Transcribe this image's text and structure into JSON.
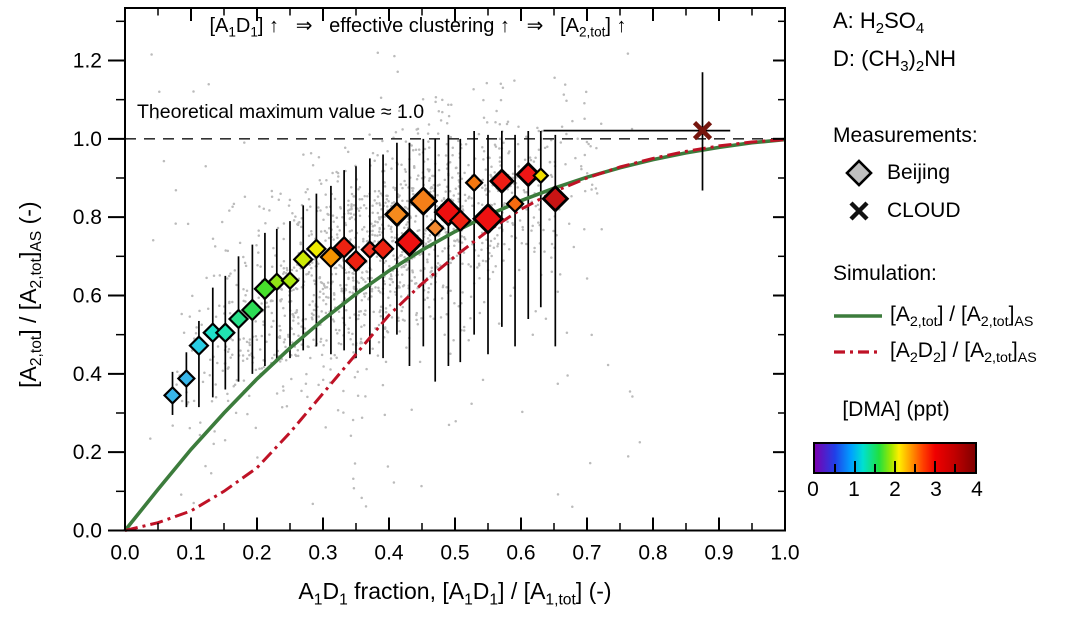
{
  "figure": {
    "annotation_segments": [
      {
        "t": "[A"
      },
      {
        "t": "1",
        "s": 1
      },
      {
        "t": "D"
      },
      {
        "t": "1",
        "s": 1
      },
      {
        "t": "] ↑   ⇒   effective clustering ↑   ⇒   [A"
      },
      {
        "t": "2,tot",
        "s": 1
      },
      {
        "t": "] ↑"
      }
    ],
    "theoretical_line_label": "Theoretical maximum value ≈ 1.0"
  },
  "legend": {
    "species_a_segments": [
      {
        "t": "A: H"
      },
      {
        "t": "2",
        "s": 1
      },
      {
        "t": "SO"
      },
      {
        "t": "4",
        "s": 1
      }
    ],
    "species_d_segments": [
      {
        "t": "D: (CH"
      },
      {
        "t": "3",
        "s": 1
      },
      {
        "t": ")"
      },
      {
        "t": "2",
        "s": 1
      },
      {
        "t": "NH"
      }
    ],
    "measurements_title": "Measurements:",
    "beijing_label": "Beijing",
    "cloud_label": "CLOUD",
    "beijing_symbol_color": "#bfbfbf",
    "simulation_title": "Simulation:",
    "sim_green_segments": [
      {
        "t": "[A"
      },
      {
        "t": "2,tot",
        "s": 1
      },
      {
        "t": "] / [A"
      },
      {
        "t": "2,tot",
        "s": 1
      },
      {
        "t": "]"
      },
      {
        "t": "AS",
        "s": 1
      }
    ],
    "sim_red_segments": [
      {
        "t": "[A"
      },
      {
        "t": "2",
        "s": 1
      },
      {
        "t": "D"
      },
      {
        "t": "2",
        "s": 1
      },
      {
        "t": "] / [A"
      },
      {
        "t": "2,tot",
        "s": 1
      },
      {
        "t": "]"
      },
      {
        "t": "AS",
        "s": 1
      }
    ],
    "colorbar_title": "[DMA] (ppt)",
    "colorbar_tick_labels": [
      "0",
      "1",
      "2",
      "3",
      "4"
    ],
    "colorbar_minor_ticks": [
      0.5,
      1,
      1.5,
      2,
      2.5,
      3,
      3.5
    ],
    "colorbar_range": [
      0,
      4
    ],
    "colorbar_stops": [
      {
        "p": 0,
        "c": "#7a00b0"
      },
      {
        "p": 12.5,
        "c": "#2040e8"
      },
      {
        "p": 22.5,
        "c": "#00a0ff"
      },
      {
        "p": 30,
        "c": "#00e0d0"
      },
      {
        "p": 40,
        "c": "#20e040"
      },
      {
        "p": 47.5,
        "c": "#a0e800"
      },
      {
        "p": 52.5,
        "c": "#ffee00"
      },
      {
        "p": 60,
        "c": "#ff9800"
      },
      {
        "p": 67.5,
        "c": "#ff4000"
      },
      {
        "p": 75,
        "c": "#f00000"
      },
      {
        "p": 87.5,
        "c": "#c00000"
      },
      {
        "p": 100,
        "c": "#800000"
      }
    ]
  },
  "chart_data": {
    "type": "scatter",
    "xlabel_segments": [
      {
        "t": "A"
      },
      {
        "t": "1",
        "s": 1
      },
      {
        "t": "D"
      },
      {
        "t": "1",
        "s": 1
      },
      {
        "t": " fraction, [A"
      },
      {
        "t": "1",
        "s": 1
      },
      {
        "t": "D"
      },
      {
        "t": "1",
        "s": 1
      },
      {
        "t": "] / [A"
      },
      {
        "t": "1,tot",
        "s": 1
      },
      {
        "t": "] (-)"
      }
    ],
    "ylabel_segments": [
      {
        "t": "[A"
      },
      {
        "t": "2,tot",
        "s": 1
      },
      {
        "t": "] / [A"
      },
      {
        "t": "2,tot",
        "s": 1
      },
      {
        "t": "]"
      },
      {
        "t": "AS",
        "s": 1
      },
      {
        "t": " (-)"
      }
    ],
    "xlim": [
      0,
      1.0
    ],
    "ylim": [
      0,
      1.334
    ],
    "x_tick_labels": [
      "0.0",
      "0.1",
      "0.2",
      "0.3",
      "0.4",
      "0.5",
      "0.6",
      "0.7",
      "0.8",
      "0.9",
      "1.0"
    ],
    "x_tick_values": [
      0,
      0.1,
      0.2,
      0.3,
      0.4,
      0.5,
      0.6,
      0.7,
      0.8,
      0.9,
      1.0
    ],
    "x_minor_step": 0.05,
    "y_tick_labels": [
      "0.0",
      "0.2",
      "0.4",
      "0.6",
      "0.8",
      "1.0",
      "1.2"
    ],
    "y_tick_values": [
      0,
      0.2,
      0.4,
      0.6,
      0.8,
      1.0,
      1.2
    ],
    "y_minor_step": 0.1,
    "dashed_max_y": 1.0,
    "colors": {
      "green_curve": "#3c7c3c",
      "red_curve": "#bf1226",
      "cloud_marker": "#76150d",
      "dashed_line": "#333333",
      "gray_scatter": "#b4b4b4",
      "errorbar": "#000000"
    },
    "beijing_points": [
      {
        "x": 0.072,
        "y": 0.345,
        "lo": 0.295,
        "hi": 0.405,
        "c": "#38b6e9",
        "s": 8
      },
      {
        "x": 0.093,
        "y": 0.388,
        "lo": 0.315,
        "hi": 0.455,
        "c": "#38b6e9",
        "s": 8
      },
      {
        "x": 0.112,
        "y": 0.472,
        "lo": 0.315,
        "hi": 0.535,
        "c": "#29cde4",
        "s": 9
      },
      {
        "x": 0.133,
        "y": 0.505,
        "lo": 0.34,
        "hi": 0.62,
        "c": "#1fe0c8",
        "s": 9
      },
      {
        "x": 0.152,
        "y": 0.505,
        "lo": 0.36,
        "hi": 0.65,
        "c": "#21e4b2",
        "s": 9
      },
      {
        "x": 0.172,
        "y": 0.54,
        "lo": 0.38,
        "hi": 0.7,
        "c": "#28e18c",
        "s": 9
      },
      {
        "x": 0.193,
        "y": 0.563,
        "lo": 0.4,
        "hi": 0.73,
        "c": "#2cdb55",
        "s": 10
      },
      {
        "x": 0.212,
        "y": 0.617,
        "lo": 0.42,
        "hi": 0.76,
        "c": "#46de2b",
        "s": 10
      },
      {
        "x": 0.23,
        "y": 0.635,
        "lo": 0.43,
        "hi": 0.77,
        "c": "#8fe316",
        "s": 8
      },
      {
        "x": 0.25,
        "y": 0.638,
        "lo": 0.44,
        "hi": 0.79,
        "c": "#a9e60e",
        "s": 8
      },
      {
        "x": 0.27,
        "y": 0.692,
        "lo": 0.46,
        "hi": 0.83,
        "c": "#cdea06",
        "s": 9
      },
      {
        "x": 0.29,
        "y": 0.719,
        "lo": 0.47,
        "hi": 0.86,
        "c": "#efea00",
        "s": 9
      },
      {
        "x": 0.312,
        "y": 0.698,
        "lo": 0.45,
        "hi": 0.88,
        "c": "#f59300",
        "s": 10
      },
      {
        "x": 0.332,
        "y": 0.723,
        "lo": 0.46,
        "hi": 0.92,
        "c": "#ee2211",
        "s": 10
      },
      {
        "x": 0.35,
        "y": 0.688,
        "lo": 0.44,
        "hi": 0.93,
        "c": "#ee2211",
        "s": 10
      },
      {
        "x": 0.371,
        "y": 0.717,
        "lo": 0.45,
        "hi": 0.95,
        "c": "#ee3322",
        "s": 8
      },
      {
        "x": 0.391,
        "y": 0.719,
        "lo": 0.44,
        "hi": 0.96,
        "c": "#ee2211",
        "s": 10
      },
      {
        "x": 0.412,
        "y": 0.807,
        "lo": 0.5,
        "hi": 0.99,
        "c": "#f58a1d",
        "s": 11
      },
      {
        "x": 0.431,
        "y": 0.736,
        "lo": 0.42,
        "hi": 0.99,
        "c": "#ee1111",
        "s": 13
      },
      {
        "x": 0.452,
        "y": 0.841,
        "lo": 0.47,
        "hi": 1.0,
        "c": "#f57f18",
        "s": 13
      },
      {
        "x": 0.47,
        "y": 0.772,
        "lo": 0.38,
        "hi": 1.0,
        "c": "#f58a30",
        "s": 8
      },
      {
        "x": 0.49,
        "y": 0.813,
        "lo": 0.42,
        "hi": 1.01,
        "c": "#ee0f0f",
        "s": 13
      },
      {
        "x": 0.508,
        "y": 0.791,
        "lo": 0.43,
        "hi": 1.0,
        "c": "#ee2211",
        "s": 10
      },
      {
        "x": 0.529,
        "y": 0.888,
        "lo": 0.5,
        "hi": 1.02,
        "c": "#f57710",
        "s": 8
      },
      {
        "x": 0.55,
        "y": 0.796,
        "lo": 0.45,
        "hi": 1.01,
        "c": "#ee1111",
        "s": 14
      },
      {
        "x": 0.571,
        "y": 0.892,
        "lo": 0.52,
        "hi": 1.02,
        "c": "#ee1d14",
        "s": 11
      },
      {
        "x": 0.591,
        "y": 0.834,
        "lo": 0.47,
        "hi": 1.01,
        "c": "#f56a10",
        "s": 8
      },
      {
        "x": 0.611,
        "y": 0.909,
        "lo": 0.54,
        "hi": 1.02,
        "c": "#ee1515",
        "s": 11
      },
      {
        "x": 0.63,
        "y": 0.906,
        "lo": 0.57,
        "hi": 1.02,
        "c": "#f0dc00",
        "s": 7
      },
      {
        "x": 0.652,
        "y": 0.847,
        "lo": 0.47,
        "hi": 1.01,
        "c": "#c81414",
        "s": 12
      }
    ],
    "cloud_point": {
      "x": 0.875,
      "y": 1.021,
      "xlo": 0.634,
      "xhi": 0.917,
      "ylo": 0.868,
      "yhi": 1.17
    },
    "green_curve": [
      [
        0,
        0
      ],
      [
        0.05,
        0.105
      ],
      [
        0.1,
        0.207
      ],
      [
        0.15,
        0.3
      ],
      [
        0.2,
        0.387
      ],
      [
        0.25,
        0.466
      ],
      [
        0.3,
        0.538
      ],
      [
        0.35,
        0.604
      ],
      [
        0.4,
        0.663
      ],
      [
        0.45,
        0.716
      ],
      [
        0.5,
        0.763
      ],
      [
        0.55,
        0.805
      ],
      [
        0.6,
        0.842
      ],
      [
        0.65,
        0.874
      ],
      [
        0.7,
        0.902
      ],
      [
        0.75,
        0.926
      ],
      [
        0.8,
        0.947
      ],
      [
        0.85,
        0.964
      ],
      [
        0.9,
        0.978
      ],
      [
        0.95,
        0.99
      ],
      [
        1.0,
        0.998
      ]
    ],
    "red_curve": [
      [
        0,
        0
      ],
      [
        0.05,
        0.02
      ],
      [
        0.1,
        0.05
      ],
      [
        0.15,
        0.1
      ],
      [
        0.2,
        0.16
      ],
      [
        0.25,
        0.25
      ],
      [
        0.3,
        0.35
      ],
      [
        0.35,
        0.45
      ],
      [
        0.4,
        0.55
      ],
      [
        0.45,
        0.63
      ],
      [
        0.5,
        0.7
      ],
      [
        0.55,
        0.765
      ],
      [
        0.6,
        0.82
      ],
      [
        0.65,
        0.865
      ],
      [
        0.7,
        0.9
      ],
      [
        0.75,
        0.928
      ],
      [
        0.8,
        0.95
      ],
      [
        0.85,
        0.968
      ],
      [
        0.9,
        0.982
      ],
      [
        0.95,
        0.992
      ],
      [
        1.0,
        0.998
      ]
    ],
    "background_scatter": {
      "seed": 42,
      "n_band": 1400,
      "n_uniform": 90,
      "sigma": 0.13,
      "x_min": 0.05,
      "x_span": 0.68,
      "trend": [
        0.28,
        1.45,
        -0.8
      ]
    }
  }
}
